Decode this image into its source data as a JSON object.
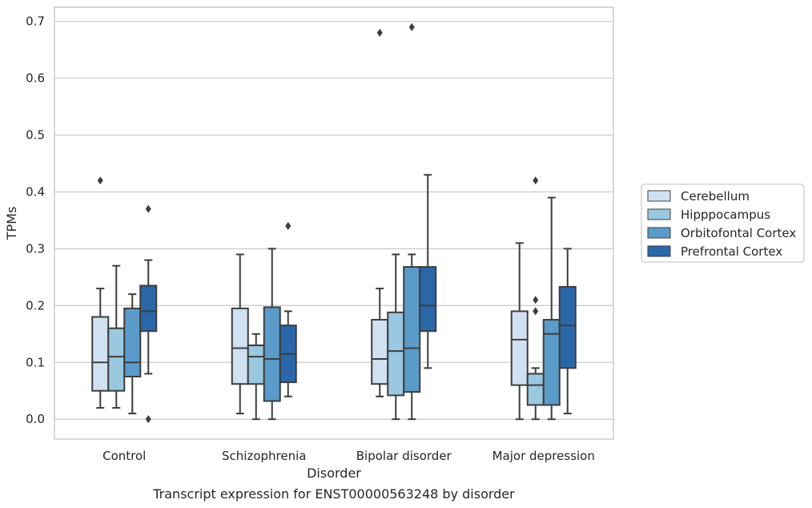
{
  "chart_data": {
    "type": "boxplot",
    "title": "",
    "caption": "Transcript expression for ENST00000563248 by disorder",
    "xlabel": "Disorder",
    "ylabel": "TPMs",
    "ylim": [
      -0.035,
      0.725
    ],
    "yticks": [
      "0.0",
      "0.1",
      "0.2",
      "0.3",
      "0.4",
      "0.5",
      "0.6",
      "0.7"
    ],
    "grid": true,
    "legend_position": "right",
    "categories": [
      "Control",
      "Schizophrenia",
      "Bipolar disorder",
      "Major depression"
    ],
    "series": [
      {
        "name": "Cerebellum",
        "color": "#d0e1f1",
        "boxes": [
          {
            "whisker_low": 0.02,
            "q1": 0.05,
            "median": 0.1,
            "q3": 0.18,
            "whisker_high": 0.23,
            "outliers": [
              0.42
            ]
          },
          {
            "whisker_low": 0.01,
            "q1": 0.062,
            "median": 0.125,
            "q3": 0.195,
            "whisker_high": 0.29,
            "outliers": []
          },
          {
            "whisker_low": 0.04,
            "q1": 0.062,
            "median": 0.106,
            "q3": 0.175,
            "whisker_high": 0.23,
            "outliers": [
              0.68
            ]
          },
          {
            "whisker_low": 0.0,
            "q1": 0.06,
            "median": 0.14,
            "q3": 0.19,
            "whisker_high": 0.31,
            "outliers": []
          }
        ]
      },
      {
        "name": "Hipppocampus",
        "color": "#9ac8e0",
        "boxes": [
          {
            "whisker_low": 0.02,
            "q1": 0.05,
            "median": 0.11,
            "q3": 0.16,
            "whisker_high": 0.27,
            "outliers": []
          },
          {
            "whisker_low": 0.0,
            "q1": 0.062,
            "median": 0.11,
            "q3": 0.13,
            "whisker_high": 0.15,
            "outliers": []
          },
          {
            "whisker_low": 0.0,
            "q1": 0.042,
            "median": 0.12,
            "q3": 0.188,
            "whisker_high": 0.29,
            "outliers": []
          },
          {
            "whisker_low": 0.0,
            "q1": 0.025,
            "median": 0.06,
            "q3": 0.08,
            "whisker_high": 0.09,
            "outliers": [
              0.19,
              0.21,
              0.42
            ]
          }
        ]
      },
      {
        "name": "Orbitofontal Cortex",
        "color": "#5a9bca",
        "boxes": [
          {
            "whisker_low": 0.01,
            "q1": 0.075,
            "median": 0.1,
            "q3": 0.195,
            "whisker_high": 0.22,
            "outliers": []
          },
          {
            "whisker_low": 0.0,
            "q1": 0.032,
            "median": 0.106,
            "q3": 0.197,
            "whisker_high": 0.3,
            "outliers": []
          },
          {
            "whisker_low": 0.0,
            "q1": 0.048,
            "median": 0.125,
            "q3": 0.268,
            "whisker_high": 0.29,
            "outliers": [
              0.69
            ]
          },
          {
            "whisker_low": 0.0,
            "q1": 0.025,
            "median": 0.15,
            "q3": 0.175,
            "whisker_high": 0.39,
            "outliers": []
          }
        ]
      },
      {
        "name": "Prefrontal Cortex",
        "color": "#2a67a8",
        "boxes": [
          {
            "whisker_low": 0.08,
            "q1": 0.155,
            "median": 0.19,
            "q3": 0.235,
            "whisker_high": 0.28,
            "outliers": [
              0.0,
              0.37
            ]
          },
          {
            "whisker_low": 0.04,
            "q1": 0.065,
            "median": 0.115,
            "q3": 0.165,
            "whisker_high": 0.19,
            "outliers": [
              0.34
            ]
          },
          {
            "whisker_low": 0.09,
            "q1": 0.155,
            "median": 0.2,
            "q3": 0.268,
            "whisker_high": 0.43,
            "outliers": []
          },
          {
            "whisker_low": 0.01,
            "q1": 0.09,
            "median": 0.165,
            "q3": 0.233,
            "whisker_high": 0.3,
            "outliers": []
          }
        ]
      }
    ]
  }
}
